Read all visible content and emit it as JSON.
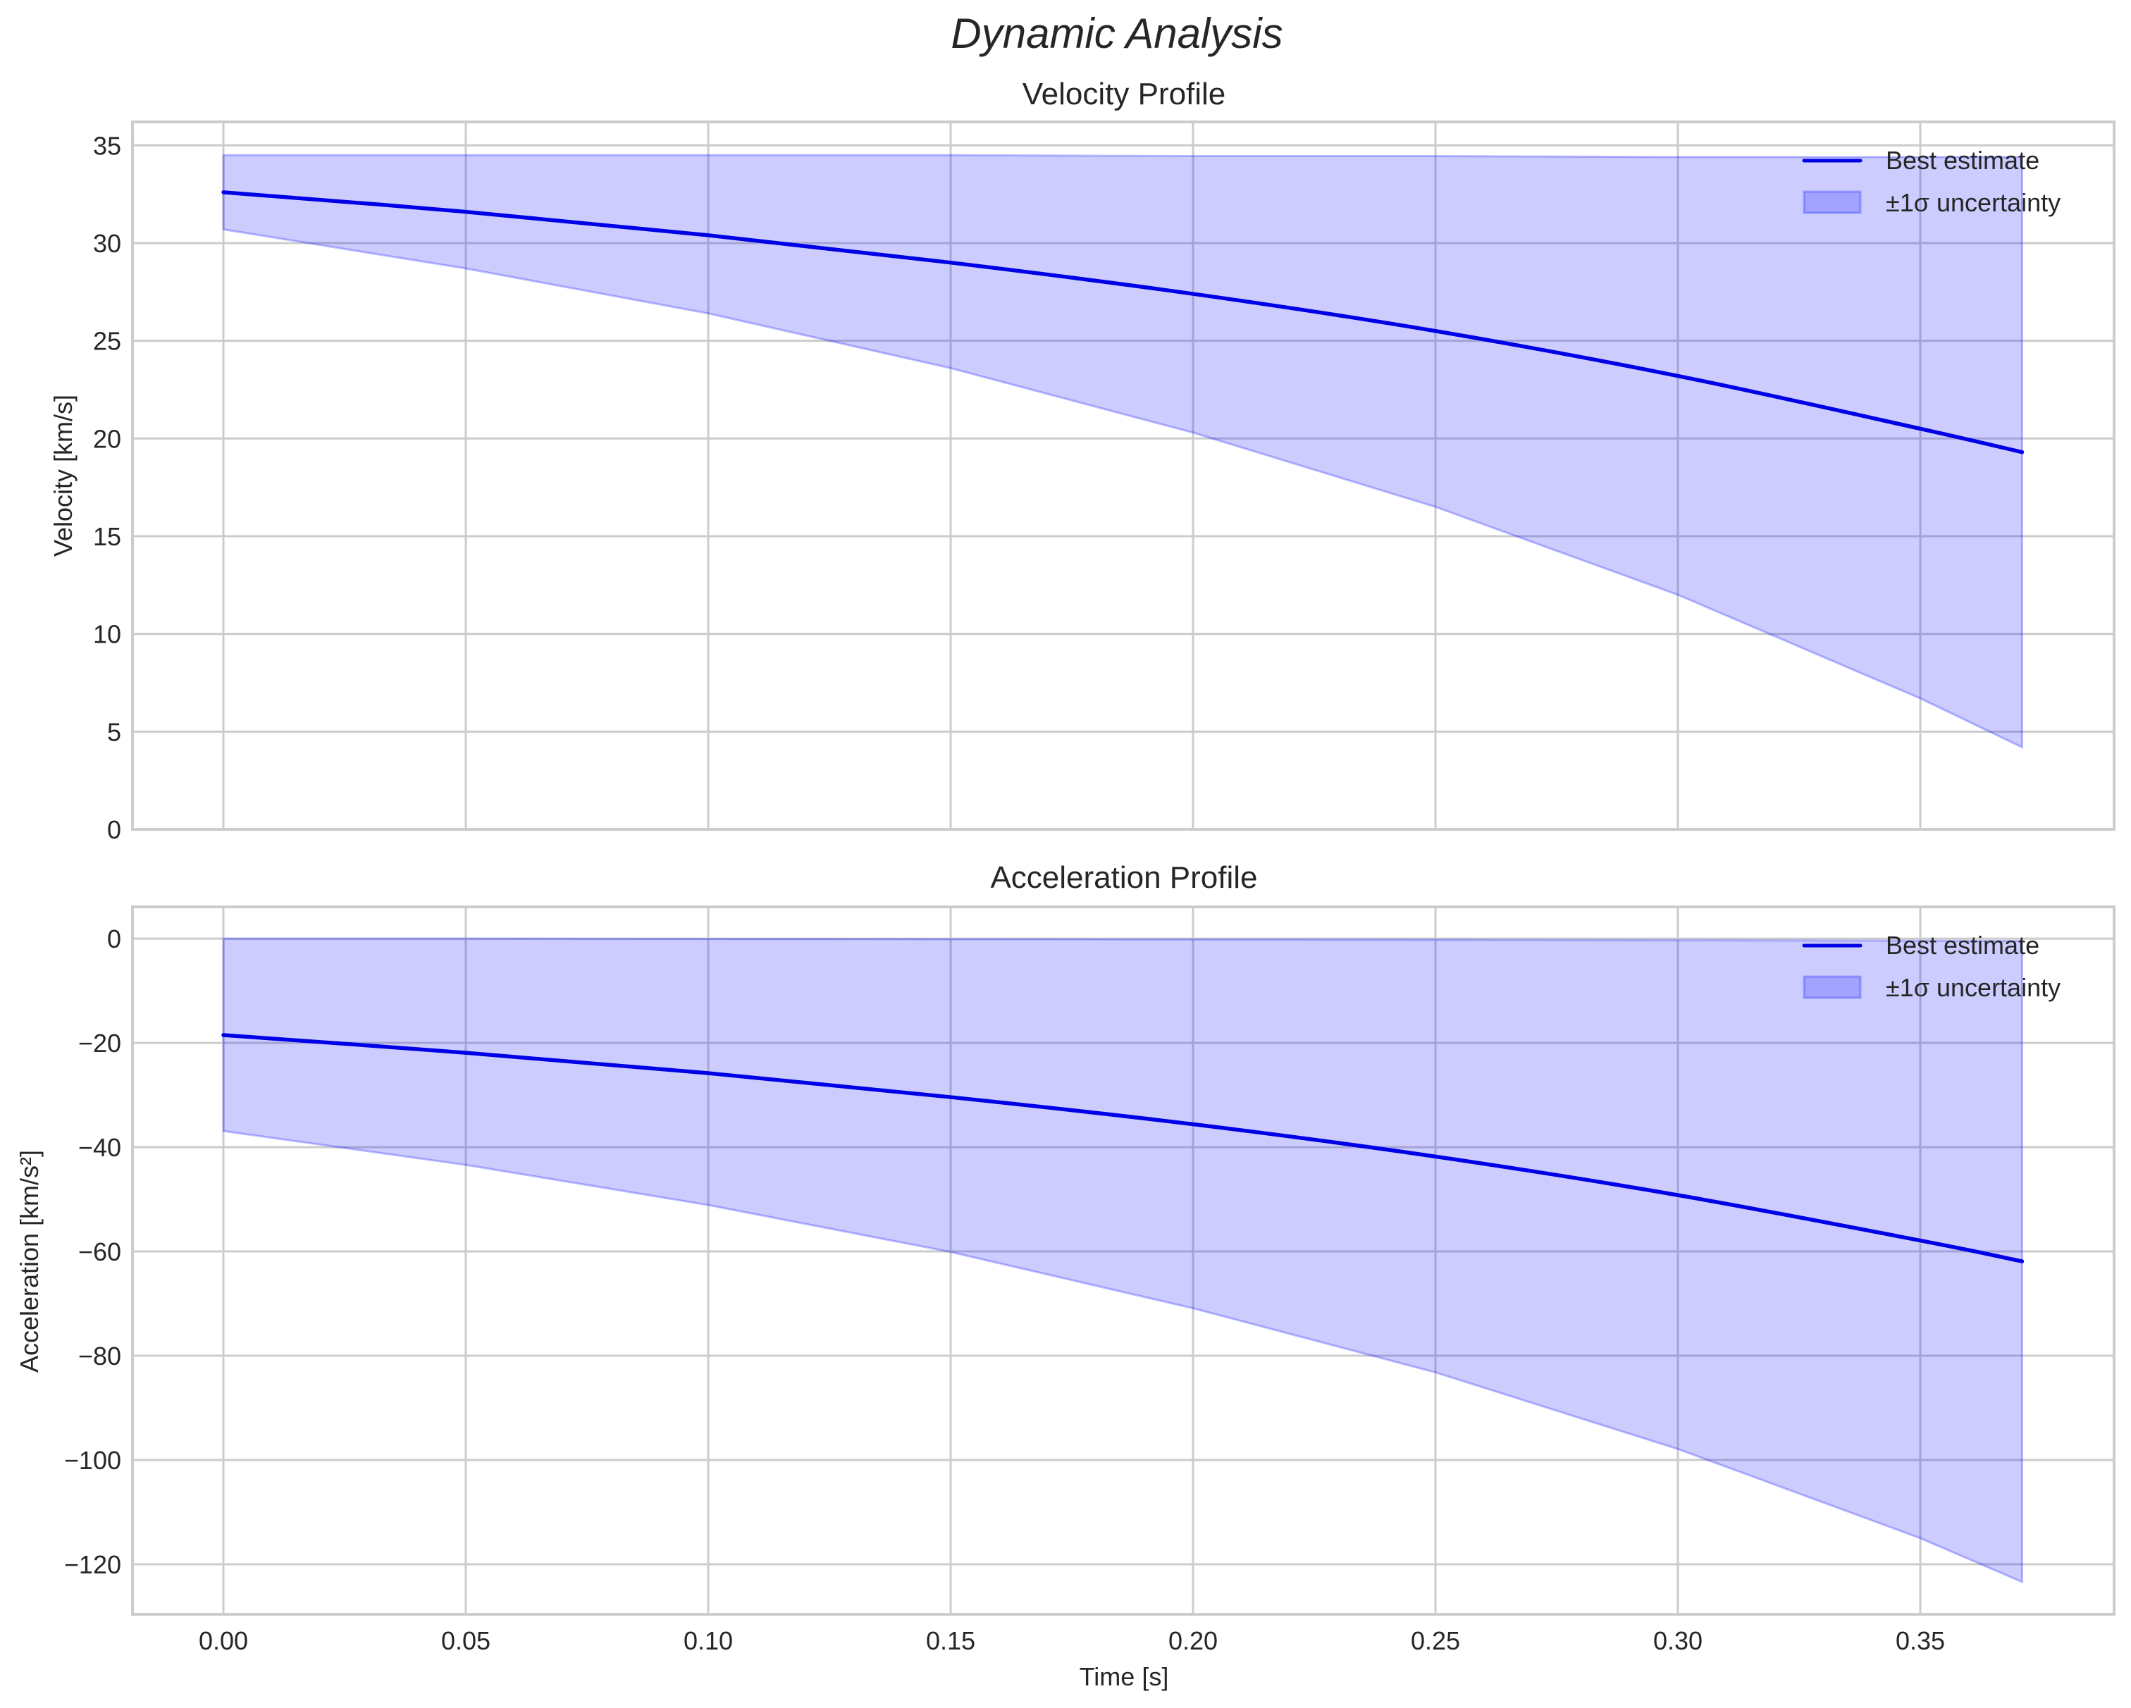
{
  "figure": {
    "title": "Dynamic Analysis",
    "line_color": "#0000e6",
    "band_fill": "#0000ff",
    "band_fill_opacity": 0.2,
    "grid_color": "#cccccc",
    "spine_color": "#cccccc"
  },
  "chart_data": [
    {
      "type": "line",
      "title": "Velocity Profile",
      "xlabel": "",
      "ylabel": "Velocity [km/s]",
      "xlim": [
        -0.018,
        0.39
      ],
      "ylim": [
        0,
        36.2
      ],
      "xticks": [
        0.0,
        0.05,
        0.1,
        0.15,
        0.2,
        0.25,
        0.3,
        0.35
      ],
      "xtick_labels_visible": false,
      "yticks": [
        0,
        5,
        10,
        15,
        20,
        25,
        30,
        35
      ],
      "ytick_labels": [
        "0",
        "5",
        "10",
        "15",
        "20",
        "25",
        "30",
        "35"
      ],
      "grid": true,
      "legend_position": "upper right",
      "x": [
        0.0,
        0.05,
        0.1,
        0.15,
        0.2,
        0.25,
        0.3,
        0.35,
        0.371
      ],
      "series": [
        {
          "name": "Best estimate",
          "kind": "line",
          "values": [
            32.6,
            31.6,
            30.4,
            29.0,
            27.4,
            25.5,
            23.2,
            20.5,
            19.3
          ]
        },
        {
          "name": "±1σ uncertainty",
          "kind": "band",
          "lower": [
            30.7,
            28.7,
            26.4,
            23.6,
            20.3,
            16.5,
            12.0,
            6.7,
            4.2
          ],
          "upper": [
            34.5,
            34.5,
            34.5,
            34.5,
            34.45,
            34.45,
            34.4,
            34.4,
            34.4
          ]
        }
      ]
    },
    {
      "type": "line",
      "title": "Acceleration Profile",
      "xlabel": "Time [s]",
      "ylabel": "Acceleration [km/s²]",
      "xlim": [
        -0.018,
        0.39
      ],
      "ylim": [
        -129.6,
        6.1
      ],
      "xticks": [
        0.0,
        0.05,
        0.1,
        0.15,
        0.2,
        0.25,
        0.3,
        0.35
      ],
      "xtick_labels": [
        "0.00",
        "0.05",
        "0.10",
        "0.15",
        "0.20",
        "0.25",
        "0.30",
        "0.35"
      ],
      "yticks": [
        0,
        -20,
        -40,
        -60,
        -80,
        -100,
        -120
      ],
      "ytick_labels": [
        "0",
        "−20",
        "−40",
        "−60",
        "−80",
        "−100",
        "−120"
      ],
      "grid": true,
      "legend_position": "upper right",
      "x": [
        0.0,
        0.05,
        0.1,
        0.15,
        0.2,
        0.25,
        0.3,
        0.35,
        0.371
      ],
      "series": [
        {
          "name": "Best estimate",
          "kind": "line",
          "values": [
            -18.5,
            -21.9,
            -25.8,
            -30.4,
            -35.6,
            -41.8,
            -49.2,
            -57.9,
            -61.9
          ]
        },
        {
          "name": "±1σ uncertainty",
          "kind": "band",
          "lower": [
            -36.9,
            -43.4,
            -51.1,
            -60.1,
            -70.9,
            -83.2,
            -97.9,
            -115.0,
            -123.4
          ],
          "upper": [
            0.0,
            0.0,
            -0.05,
            -0.1,
            -0.15,
            -0.2,
            -0.3,
            -0.4,
            -0.45
          ]
        }
      ]
    }
  ],
  "legend": {
    "items": [
      {
        "label": "Best estimate",
        "icon": "line-swatch"
      },
      {
        "label": "±1σ uncertainty",
        "icon": "patch-swatch"
      }
    ]
  }
}
